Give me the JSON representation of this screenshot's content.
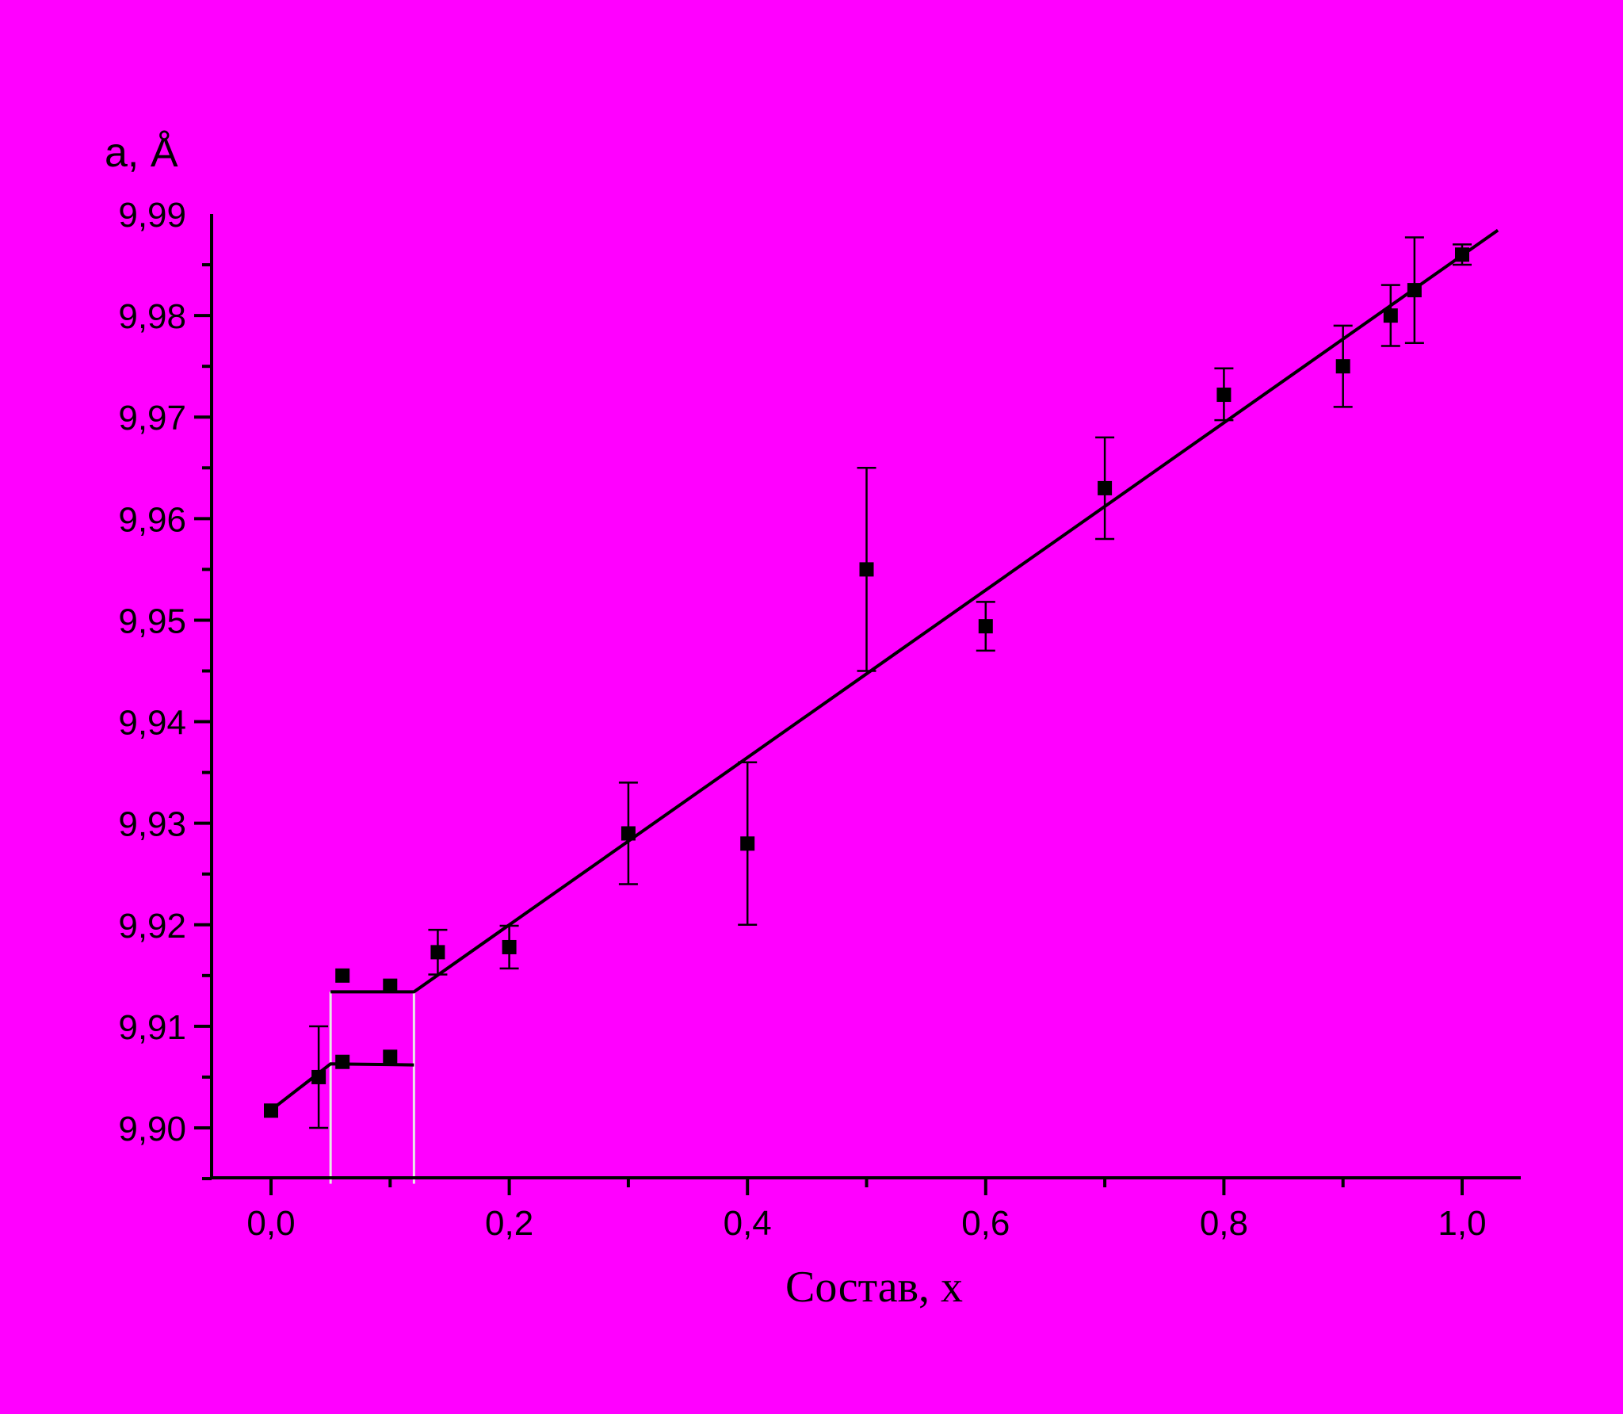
{
  "chart_data": {
    "type": "scatter",
    "title": "",
    "xlabel": "Состав, x",
    "ylabel": "a, Å",
    "xlim": [
      -0.05,
      1.05
    ],
    "ylim": [
      9.895,
      9.99
    ],
    "x_ticks": [
      {
        "value": 0.0,
        "label": "0,0"
      },
      {
        "value": 0.2,
        "label": "0,2"
      },
      {
        "value": 0.4,
        "label": "0,4"
      },
      {
        "value": 0.6,
        "label": "0,6"
      },
      {
        "value": 0.8,
        "label": "0,8"
      },
      {
        "value": 1.0,
        "label": "1,0"
      }
    ],
    "y_ticks": [
      {
        "value": 9.9,
        "label": "9,90"
      },
      {
        "value": 9.91,
        "label": "9,91"
      },
      {
        "value": 9.92,
        "label": "9,92"
      },
      {
        "value": 9.93,
        "label": "9,93"
      },
      {
        "value": 9.94,
        "label": "9,94"
      },
      {
        "value": 9.95,
        "label": "9,95"
      },
      {
        "value": 9.96,
        "label": "9,96"
      },
      {
        "value": 9.97,
        "label": "9,97"
      },
      {
        "value": 9.98,
        "label": "9,98"
      },
      {
        "value": 9.99,
        "label": "9,99"
      }
    ],
    "grid": false,
    "points": [
      {
        "x": 0.0,
        "y": 9.9017,
        "yerr_low": null,
        "yerr_high": null
      },
      {
        "x": 0.04,
        "y": 9.905,
        "yerr_low": 9.9,
        "yerr_high": 9.91
      },
      {
        "x": 0.06,
        "y": 9.915,
        "yerr_low": null,
        "yerr_high": null
      },
      {
        "x": 0.06,
        "y": 9.9065,
        "yerr_low": null,
        "yerr_high": null
      },
      {
        "x": 0.1,
        "y": 9.914,
        "yerr_low": null,
        "yerr_high": null
      },
      {
        "x": 0.1,
        "y": 9.907,
        "yerr_low": null,
        "yerr_high": null
      },
      {
        "x": 0.14,
        "y": 9.9173,
        "yerr_low": 9.9151,
        "yerr_high": 9.9195
      },
      {
        "x": 0.2,
        "y": 9.9178,
        "yerr_low": 9.9157,
        "yerr_high": 9.9199
      },
      {
        "x": 0.3,
        "y": 9.929,
        "yerr_low": 9.924,
        "yerr_high": 9.934
      },
      {
        "x": 0.4,
        "y": 9.928,
        "yerr_low": 9.92,
        "yerr_high": 9.936
      },
      {
        "x": 0.5,
        "y": 9.955,
        "yerr_low": 9.945,
        "yerr_high": 9.965
      },
      {
        "x": 0.6,
        "y": 9.9494,
        "yerr_low": 9.947,
        "yerr_high": 9.9518
      },
      {
        "x": 0.7,
        "y": 9.963,
        "yerr_low": 9.958,
        "yerr_high": 9.968
      },
      {
        "x": 0.8,
        "y": 9.9722,
        "yerr_low": 9.9697,
        "yerr_high": 9.9748
      },
      {
        "x": 0.9,
        "y": 9.975,
        "yerr_low": 9.971,
        "yerr_high": 9.979
      },
      {
        "x": 0.94,
        "y": 9.98,
        "yerr_low": 9.977,
        "yerr_high": 9.983
      },
      {
        "x": 0.96,
        "y": 9.9825,
        "yerr_low": 9.9773,
        "yerr_high": 9.9877
      },
      {
        "x": 1.0,
        "y": 9.986,
        "yerr_low": 9.985,
        "yerr_high": 9.987
      }
    ],
    "fit_lines": [
      {
        "points": [
          [
            -0.005,
            9.9013
          ],
          [
            0.05,
            9.9063
          ],
          [
            0.12,
            9.9062
          ]
        ]
      },
      {
        "points": [
          [
            0.05,
            9.9134
          ],
          [
            0.12,
            9.9134
          ],
          [
            1.03,
            9.9884
          ]
        ]
      }
    ],
    "guide_lines": [
      {
        "x": 0.05,
        "y_from": 9.8945,
        "y_to": 9.9134,
        "color": "#e8e8e8"
      },
      {
        "x": 0.12,
        "y_from": 9.8945,
        "y_to": 9.9134,
        "color": "#e8e8e8"
      }
    ],
    "colors": {
      "background": "#ff00ff",
      "ink": "#000000",
      "guide": "#e8e8e8"
    }
  }
}
